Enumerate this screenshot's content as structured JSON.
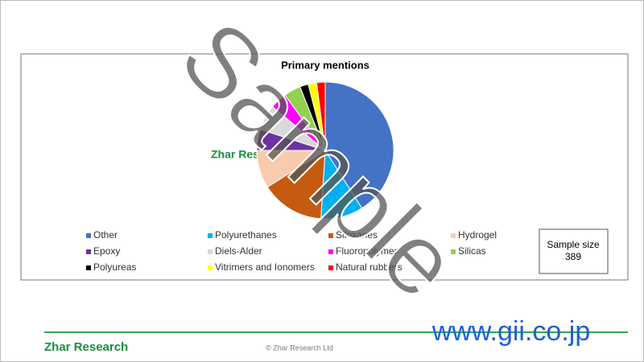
{
  "chart_data": {
    "type": "pie",
    "title": "Primary mentions",
    "categories": [
      "Other",
      "Polyurethanes",
      "Siloxanes",
      "Hydrogel",
      "Epoxy",
      "Diels-Alder",
      "Fluoropolymer",
      "Silicas",
      "Polyureas",
      "Vitrimers and Ionomers",
      "Natural rubbers"
    ],
    "values": [
      41,
      10,
      15,
      9,
      5,
      6,
      4,
      4,
      2,
      2,
      2
    ],
    "colors": [
      "#4472c4",
      "#00b0f0",
      "#c55a11",
      "#f8cbad",
      "#7030a0",
      "#d9d9d9",
      "#ff00ff",
      "#92d050",
      "#000000",
      "#ffff00",
      "#ff0000"
    ],
    "legend": "bottom"
  },
  "sample_size_label": "Sample size",
  "sample_size": 389,
  "chart_logo": "Zhar Research",
  "footer_logo": "Zhar Research",
  "copyright": "© Zhar Research Ltd",
  "site": "www.gii.co.jp",
  "watermark": "Sample"
}
